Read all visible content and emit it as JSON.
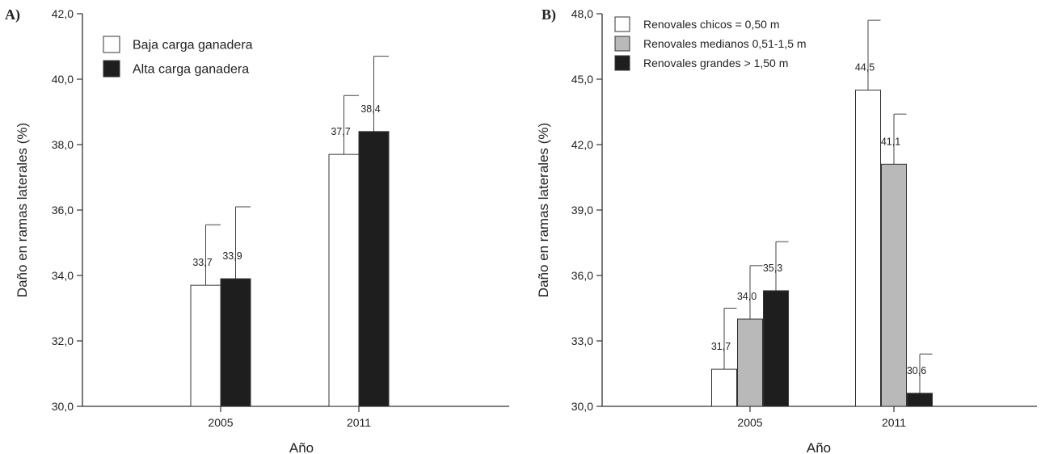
{
  "chart_data": [
    {
      "panel_label": "A)",
      "type": "bar",
      "categories": [
        "2005",
        "2011"
      ],
      "series": [
        {
          "name": "Baja carga ganadera",
          "color": "#ffffff",
          "values": [
            33.7,
            37.7
          ],
          "labels": [
            "33,7",
            "37,7"
          ],
          "error_upper": [
            35.55,
            39.5
          ]
        },
        {
          "name": "Alta carga ganadera",
          "color": "#1e1e1e",
          "values": [
            33.9,
            38.4
          ],
          "labels": [
            "33,9",
            "38,4"
          ],
          "error_upper": [
            36.1,
            40.7
          ]
        }
      ],
      "xlabel": "Año",
      "ylabel": "Daño en ramas laterales (%)",
      "ylim": [
        30,
        42
      ],
      "yticks": [
        30,
        32,
        34,
        36,
        38,
        40,
        42
      ],
      "ytick_labels": [
        "30,0",
        "32,0",
        "34,0",
        "36,0",
        "38,0",
        "40,0",
        "42,0"
      ],
      "legend_position": "top-left",
      "grid": false
    },
    {
      "panel_label": "B)",
      "type": "bar",
      "categories": [
        "2005",
        "2011"
      ],
      "series": [
        {
          "name": "Renovales chicos = 0,50 m",
          "color": "#ffffff",
          "values": [
            31.7,
            44.5
          ],
          "labels": [
            "31,7",
            "44,5"
          ],
          "error_upper": [
            34.5,
            47.7
          ]
        },
        {
          "name": "Renovales medianos 0,51-1,5 m",
          "color": "#b9b9b9",
          "values": [
            34.0,
            41.1
          ],
          "labels": [
            "34,0",
            "41,1"
          ],
          "error_upper": [
            36.45,
            43.4
          ]
        },
        {
          "name": "Renovales grandes > 1,50 m",
          "color": "#1e1e1e",
          "values": [
            35.3,
            30.6
          ],
          "labels": [
            "35,3",
            "30,6"
          ],
          "error_upper": [
            37.55,
            32.4
          ]
        }
      ],
      "xlabel": "Año",
      "ylabel": "Daño en ramas laterales (%)",
      "ylim": [
        30,
        48
      ],
      "yticks": [
        30,
        33,
        36,
        39,
        42,
        45,
        48
      ],
      "ytick_labels": [
        "30,0",
        "33,0",
        "36,0",
        "39,0",
        "42,0",
        "45,0",
        "48,0"
      ],
      "legend_position": "top-left",
      "grid": false
    }
  ]
}
